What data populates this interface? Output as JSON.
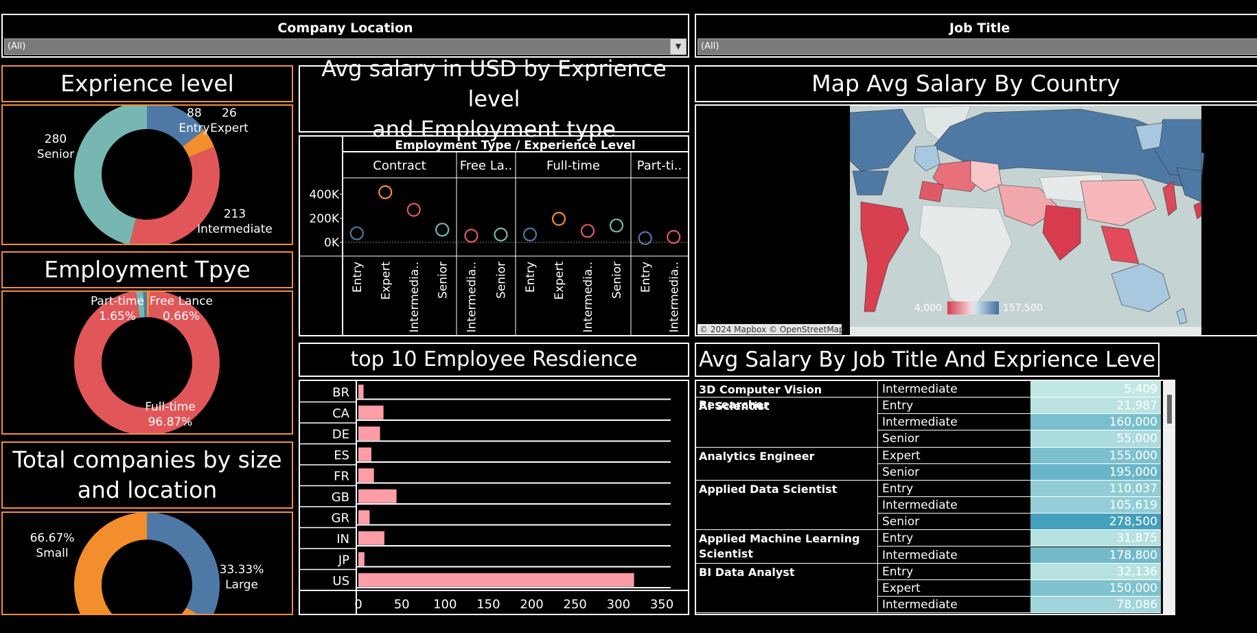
{
  "filters": {
    "location": {
      "label": "Company Location",
      "value": "(All)"
    },
    "job_title": {
      "label": "Job Title",
      "value": "(All)"
    }
  },
  "titles": {
    "experience": "Exprience level",
    "employment": "Employment Tpye",
    "companies_l1": "Total companies by size",
    "companies_l2": "and location",
    "avg_salary_l1": "Avg salary in USD by Exprience level",
    "avg_salary_l2": "and Employment type",
    "residence": "top 10 Employee Resdience",
    "map": "Map Avg Salary By Country",
    "job_table": "Avg Salary By Job Title And Exprience Leve"
  },
  "colors": {
    "blue": "#4e79a7",
    "orange": "#f28e2b",
    "red": "#e15759",
    "teal": "#76b7b2",
    "pink": "#ff9da7",
    "accent_border": "#f0903a"
  },
  "map": {
    "attribution": "© 2024 Mapbox © OpenStreetMap",
    "legend_min": "4,000",
    "legend_max": "157,500"
  },
  "chart_data": [
    {
      "id": "experience-donut",
      "type": "pie",
      "slices": [
        {
          "name": "Entry",
          "value": 88,
          "label": "88",
          "label2": "Entry",
          "color": "#4e79a7"
        },
        {
          "name": "Expert",
          "value": 26,
          "label": "26",
          "label2": "Expert",
          "color": "#f28e2b"
        },
        {
          "name": "Intermediate",
          "value": 213,
          "label": "213",
          "label2": "Intermediate",
          "color": "#e15759"
        },
        {
          "name": "Senior",
          "value": 280,
          "label": "280",
          "label2": "Senior",
          "color": "#76b7b2"
        }
      ]
    },
    {
      "id": "employment-donut",
      "type": "pie",
      "slices": [
        {
          "name": "Free Lance",
          "value": 0.66,
          "label": "Free Lance",
          "label2": "0.66%",
          "color": "#f28e2b"
        },
        {
          "name": "Full-time",
          "value": 96.87,
          "label": "Full-time",
          "label2": "96.87%",
          "color": "#e15759"
        },
        {
          "name": "Part-time",
          "value": 1.65,
          "label": "Part-time",
          "label2": "1.65%",
          "color": "#76b7b2"
        },
        {
          "name": "Contract",
          "value": 0.82,
          "label": "",
          "label2": "",
          "color": "#4e79a7"
        }
      ]
    },
    {
      "id": "company-size-donut",
      "type": "pie",
      "slices": [
        {
          "name": "Large",
          "value": 33.33,
          "label": "33.33%",
          "label2": "Large",
          "color": "#4e79a7"
        },
        {
          "name": "Small",
          "value": 66.67,
          "label": "66.67%",
          "label2": "Small",
          "color": "#f28e2b"
        }
      ]
    },
    {
      "id": "avg-salary-scatter",
      "type": "scatter",
      "header": "Employment Type  /  Experience Level",
      "groups": [
        "Contract",
        "Free La..",
        "Full-time",
        "Part-ti.."
      ],
      "y_ticks": [
        "0K",
        "200K",
        "400K"
      ],
      "ylim": [
        0,
        450000
      ],
      "points": [
        {
          "group": 0,
          "level": "Entry",
          "value": 75000,
          "color": "#4e79a7"
        },
        {
          "group": 0,
          "level": "Expert",
          "value": 416000,
          "color": "#f28e2b"
        },
        {
          "group": 0,
          "level": "Intermedia..",
          "value": 270000,
          "color": "#e15759"
        },
        {
          "group": 0,
          "level": "Senior",
          "value": 105000,
          "color": "#76b7b2"
        },
        {
          "group": 1,
          "level": "Intermedia..",
          "value": 55000,
          "color": "#e15759"
        },
        {
          "group": 1,
          "level": "Senior",
          "value": 65000,
          "color": "#76b7b2"
        },
        {
          "group": 2,
          "level": "Entry",
          "value": 65000,
          "color": "#4e79a7"
        },
        {
          "group": 2,
          "level": "Expert",
          "value": 195000,
          "color": "#f28e2b"
        },
        {
          "group": 2,
          "level": "Intermedia..",
          "value": 95000,
          "color": "#e15759"
        },
        {
          "group": 2,
          "level": "Senior",
          "value": 140000,
          "color": "#76b7b2"
        },
        {
          "group": 3,
          "level": "Entry",
          "value": 35000,
          "color": "#4e79a7"
        },
        {
          "group": 3,
          "level": "Intermedia..",
          "value": 45000,
          "color": "#e15759"
        }
      ]
    },
    {
      "id": "residence-bar",
      "type": "bar",
      "categories": [
        "BR",
        "CA",
        "DE",
        "ES",
        "FR",
        "GB",
        "GR",
        "IN",
        "JP",
        "US"
      ],
      "values": [
        6,
        29,
        25,
        15,
        18,
        44,
        13,
        30,
        7,
        318
      ],
      "x_ticks": [
        0,
        50,
        100,
        150,
        200,
        250,
        300,
        350
      ],
      "xlim": [
        0,
        350
      ]
    },
    {
      "id": "job-title-table",
      "type": "table",
      "groups": [
        {
          "title": "3D Computer Vision Researcher",
          "rows": [
            {
              "level": "Intermediate",
              "value": "5,409",
              "v": 5409
            }
          ]
        },
        {
          "title": "AI Scientist",
          "rows": [
            {
              "level": "Entry",
              "value": "21,987",
              "v": 21987
            },
            {
              "level": "Intermediate",
              "value": "160,000",
              "v": 160000
            },
            {
              "level": "Senior",
              "value": "55,000",
              "v": 55000
            }
          ]
        },
        {
          "title": "Analytics Engineer",
          "rows": [
            {
              "level": "Expert",
              "value": "155,000",
              "v": 155000
            },
            {
              "level": "Senior",
              "value": "195,000",
              "v": 195000
            }
          ]
        },
        {
          "title": "Applied Data Scientist",
          "rows": [
            {
              "level": "Entry",
              "value": "110,037",
              "v": 110037
            },
            {
              "level": "Intermediate",
              "value": "105,619",
              "v": 105619
            },
            {
              "level": "Senior",
              "value": "278,500",
              "v": 278500
            }
          ]
        },
        {
          "title": "Applied Machine Learning Scientist",
          "rows": [
            {
              "level": "Entry",
              "value": "31,875",
              "v": 31875
            },
            {
              "level": "Intermediate",
              "value": "178,800",
              "v": 178800
            }
          ]
        },
        {
          "title": "BI Data Analyst",
          "rows": [
            {
              "level": "Entry",
              "value": "32,136",
              "v": 32136
            },
            {
              "level": "Expert",
              "value": "150,000",
              "v": 150000
            },
            {
              "level": "Intermediate",
              "value": "78,086",
              "v": 78086
            }
          ]
        }
      ]
    }
  ]
}
